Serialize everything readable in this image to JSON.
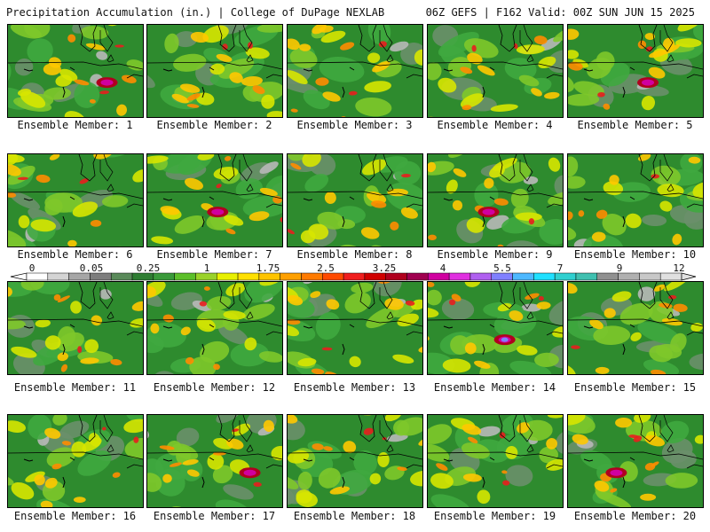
{
  "header": {
    "title": "Precipitation Accumulation (in.) | College of DuPage NEXLAB",
    "run_info": "06Z GEFS | F162 Valid: 00Z SUN JUN 15 2025"
  },
  "panels": [
    {
      "label": "Ensemble Member: 1"
    },
    {
      "label": "Ensemble Member: 2"
    },
    {
      "label": "Ensemble Member: 3"
    },
    {
      "label": "Ensemble Member: 4"
    },
    {
      "label": "Ensemble Member: 5"
    },
    {
      "label": "Ensemble Member: 6"
    },
    {
      "label": "Ensemble Member: 7"
    },
    {
      "label": "Ensemble Member: 8"
    },
    {
      "label": "Ensemble Member: 9"
    },
    {
      "label": "Ensemble Member: 10"
    },
    {
      "label": "Ensemble Member: 11"
    },
    {
      "label": "Ensemble Member: 12"
    },
    {
      "label": "Ensemble Member: 13"
    },
    {
      "label": "Ensemble Member: 14"
    },
    {
      "label": "Ensemble Member: 15"
    },
    {
      "label": "Ensemble Member: 16"
    },
    {
      "label": "Ensemble Member: 17"
    },
    {
      "label": "Ensemble Member: 18"
    },
    {
      "label": "Ensemble Member: 19"
    },
    {
      "label": "Ensemble Member: 20"
    }
  ],
  "colorbar": {
    "labels": [
      "0",
      "0.05",
      "0.25",
      "1",
      "1.75",
      "2.5",
      "3.25",
      "4",
      "5.5",
      "7",
      "9",
      "12"
    ],
    "colors": [
      "#ffffff",
      "#d4d4d4",
      "#a6a6a6",
      "#7d7d7d",
      "#5a8a5a",
      "#2e7d32",
      "#3a9a3a",
      "#5cbf2a",
      "#9ad22a",
      "#e8f000",
      "#ffe000",
      "#ffc400",
      "#ffa000",
      "#ff7a00",
      "#ff4a00",
      "#f01e1e",
      "#d00000",
      "#b0001e",
      "#a00050",
      "#d000a0",
      "#e030e0",
      "#b060f0",
      "#8080ff",
      "#4db8ff",
      "#20e0ff",
      "#30d0d0",
      "#40c0b0",
      "#909090",
      "#b0b0b0",
      "#c8c8c8",
      "#e0e0e0"
    ]
  }
}
